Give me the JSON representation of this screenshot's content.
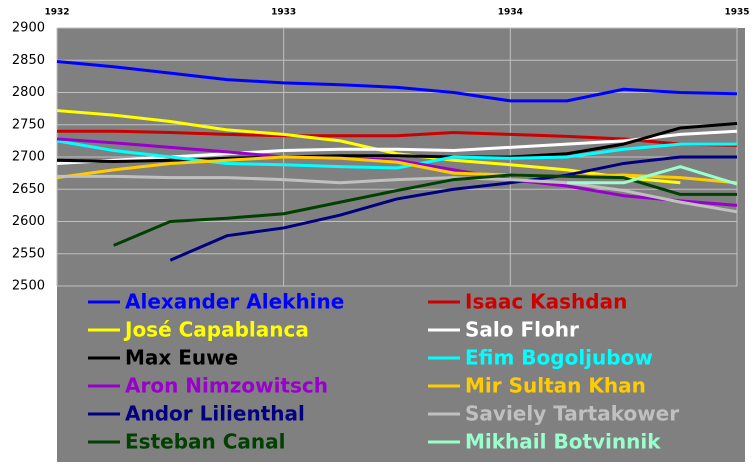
{
  "chart_data": {
    "type": "line",
    "x": [
      1932,
      1932.25,
      1932.5,
      1932.75,
      1933,
      1933.25,
      1933.5,
      1933.75,
      1934,
      1934.25,
      1934.5,
      1934.75,
      1935
    ],
    "xlim": [
      1932,
      1935
    ],
    "xticks": [
      1932,
      1933,
      1934,
      1935
    ],
    "ylim": [
      2500,
      2900
    ],
    "yticks": [
      2500,
      2550,
      2600,
      2650,
      2700,
      2750,
      2800,
      2850,
      2900
    ],
    "grid": true,
    "legend": "bottom",
    "series": [
      {
        "name": "Alexander Alekhine",
        "color": "#0000ff",
        "values": [
          2848,
          2840,
          2830,
          2820,
          2815,
          2812,
          2808,
          2800,
          2787,
          2787,
          2805,
          2800,
          2798
        ]
      },
      {
        "name": "Isaac Kashdan",
        "color": "#cc0000",
        "values": [
          2740,
          2740,
          2738,
          2735,
          2733,
          2733,
          2733,
          2738,
          2735,
          2732,
          2728,
          2720,
          2718
        ]
      },
      {
        "name": "José Capablanca",
        "color": "#ffff00",
        "values": [
          2772,
          2765,
          2755,
          2742,
          2735,
          2725,
          2705,
          2695,
          2688,
          2680,
          2668,
          2660,
          null
        ]
      },
      {
        "name": "Salo Flohr",
        "color": "#ffffff",
        "values": [
          2690,
          2695,
          2700,
          2705,
          2710,
          2712,
          2712,
          2710,
          2715,
          2720,
          2725,
          2735,
          2740
        ]
      },
      {
        "name": "Max Euwe",
        "color": "#000000",
        "values": [
          2695,
          2693,
          2695,
          2698,
          2700,
          2702,
          2702,
          2700,
          2700,
          2705,
          2720,
          2745,
          2752
        ]
      },
      {
        "name": "Efim Bogoljubow",
        "color": "#00ffff",
        "values": [
          2725,
          2710,
          2700,
          2690,
          2688,
          2685,
          2683,
          2700,
          2698,
          2700,
          2712,
          2720,
          2720
        ]
      },
      {
        "name": "Aron Nimzowitsch",
        "color": "#9900cc",
        "values": [
          2728,
          2722,
          2715,
          2708,
          2700,
          2698,
          2695,
          2680,
          2665,
          2655,
          2640,
          2632,
          2625
        ]
      },
      {
        "name": "Mir Sultan Khan",
        "color": "#ffcc00",
        "values": [
          2668,
          2680,
          2690,
          2695,
          2700,
          2698,
          2692,
          2675,
          2672,
          2670,
          2672,
          2668,
          2660
        ]
      },
      {
        "name": "Andor Lilienthal",
        "color": "#000080",
        "values": [
          null,
          null,
          2540,
          2578,
          2590,
          2610,
          2635,
          2650,
          2660,
          2672,
          2690,
          2700,
          2700
        ]
      },
      {
        "name": "Saviely Tartakower",
        "color": "#c0c0c0",
        "values": [
          2670,
          2670,
          2668,
          2668,
          2665,
          2660,
          2665,
          2668,
          2665,
          2660,
          2648,
          2630,
          2615
        ]
      },
      {
        "name": "Esteban Canal",
        "color": "#004000",
        "values": [
          null,
          2563,
          2600,
          2605,
          2612,
          2630,
          2648,
          2665,
          2672,
          2670,
          2668,
          2642,
          2642
        ]
      },
      {
        "name": "Mikhail Botvinnik",
        "color": "#99ffcc",
        "values": [
          null,
          null,
          null,
          null,
          null,
          null,
          null,
          null,
          null,
          2660,
          2660,
          2685,
          2658
        ]
      }
    ]
  }
}
